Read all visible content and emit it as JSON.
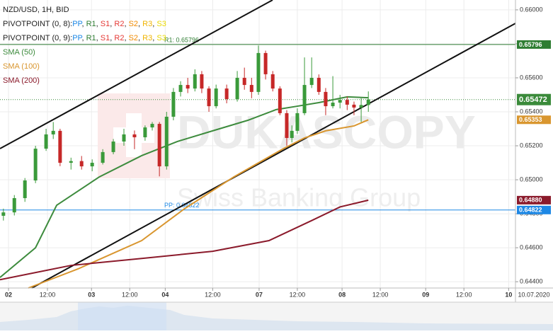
{
  "chart_data": {
    "type": "candlestick",
    "title": "NZD/USD, 1H, BID",
    "up_color": "#3a9a3a",
    "down_color": "#c62828",
    "x": [
      -1.5,
      1.7,
      4.8,
      7.9,
      11.0,
      13.1,
      15.1,
      18.3,
      21.4,
      24.5,
      27.6,
      30.7,
      33.8,
      36.9,
      40.0,
      42.1,
      44.2,
      46.3,
      48.3,
      50.4,
      52.5,
      54.6,
      56.6,
      58.7,
      60.8,
      63.9,
      67.0,
      69.1,
      71.2,
      73.2,
      75.3,
      77.4,
      79.5,
      81.5,
      83.0,
      84.6,
      86.7,
      88.8,
      90.9,
      92.9,
      95.0,
      97.1,
      99.2,
      101.2,
      103.3,
      105.4
    ],
    "open": [
      0.64788,
      0.64808,
      0.64892,
      0.64996,
      0.65183,
      0.65267,
      0.65288,
      0.651,
      0.6511,
      0.65079,
      0.651,
      0.65163,
      0.65225,
      0.65267,
      0.6525,
      0.65308,
      0.65329,
      0.65079,
      0.65371,
      0.65517,
      0.65558,
      0.65537,
      0.65621,
      0.65537,
      0.65433,
      0.65537,
      0.65475,
      0.656,
      0.65558,
      0.65517,
      0.65746,
      0.65621,
      0.65537,
      0.65392,
      0.65246,
      0.65288,
      0.65392,
      0.65558,
      0.656,
      0.65517,
      0.65433,
      0.65454,
      0.6547,
      0.65442,
      0.65425,
      0.6544
    ],
    "high": [
      0.6483,
      0.6491,
      0.6501,
      0.652,
      0.653,
      0.6534,
      0.653,
      0.6513,
      0.6514,
      0.6512,
      0.6518,
      0.6524,
      0.653,
      0.6529,
      0.6532,
      0.6534,
      0.6534,
      0.654,
      0.6554,
      0.6558,
      0.656,
      0.6565,
      0.6564,
      0.6555,
      0.6556,
      0.6556,
      0.6564,
      0.6566,
      0.656,
      0.6579,
      0.6576,
      0.6564,
      0.6555,
      0.6541,
      0.6532,
      0.6542,
      0.6572,
      0.6572,
      0.6562,
      0.6554,
      0.6561,
      0.655,
      0.6549,
      0.6546,
      0.6548,
      0.6552
    ],
    "low": [
      0.6476,
      0.6479,
      0.6487,
      0.6498,
      0.6517,
      0.6524,
      0.6508,
      0.6506,
      0.6506,
      0.6505,
      0.6509,
      0.6515,
      0.652,
      0.6518,
      0.6523,
      0.6529,
      0.6502,
      0.6506,
      0.6535,
      0.6549,
      0.6551,
      0.6552,
      0.6551,
      0.654,
      0.6542,
      0.6545,
      0.6546,
      0.6553,
      0.6548,
      0.655,
      0.6559,
      0.6552,
      0.6538,
      0.652,
      0.6522,
      0.6527,
      0.6538,
      0.6554,
      0.655,
      0.6538,
      0.6542,
      0.6542,
      0.6541,
      0.6538,
      0.6534,
      0.654
    ],
    "close": [
      0.64808,
      0.64892,
      0.64996,
      0.65183,
      0.65267,
      0.65288,
      0.651,
      0.6511,
      0.65079,
      0.651,
      0.65163,
      0.65225,
      0.65267,
      0.6525,
      0.65308,
      0.65329,
      0.65079,
      0.65371,
      0.65517,
      0.65558,
      0.65537,
      0.65621,
      0.65537,
      0.65433,
      0.65537,
      0.65475,
      0.656,
      0.65558,
      0.65517,
      0.65746,
      0.65621,
      0.65537,
      0.65392,
      0.65246,
      0.65288,
      0.65392,
      0.65558,
      0.656,
      0.65517,
      0.65433,
      0.65454,
      0.6547,
      0.65442,
      0.65425,
      0.6544,
      0.65472
    ],
    "last_price": {
      "value": 0.65472,
      "label": "0.65472",
      "color": "#3a8a3a"
    },
    "series": [
      {
        "name": "SMA (50)",
        "color": "#3d8b3d",
        "x": [
          -2.5,
          7.9,
          14.1,
          26.6,
          39.0,
          49.4,
          59.8,
          70.1,
          78.4,
          84.6,
          90.9,
          99.2,
          105.4
        ],
        "values": [
          0.64425,
          0.646,
          0.6485,
          0.65017,
          0.65142,
          0.65225,
          0.65288,
          0.6535,
          0.65413,
          0.65433,
          0.65454,
          0.65488,
          0.65483
        ]
      },
      {
        "name": "SMA (100)",
        "color": "#d9962f",
        "x": [
          5.8,
          20.3,
          39.0,
          51.5,
          66.0,
          80.5,
          86.7,
          92.9,
          101.2,
          105.4
        ],
        "values": [
          0.64363,
          0.64475,
          0.64642,
          0.64829,
          0.65017,
          0.65183,
          0.65246,
          0.65288,
          0.65317,
          0.65353
        ],
        "end_label": "0.65353"
      },
      {
        "name": "SMA (200)",
        "color": "#8b1a2b",
        "x": [
          -2.5,
          18.3,
          39.0,
          59.8,
          76.3,
          88.8,
          97.1,
          105.4
        ],
        "values": [
          0.64412,
          0.64496,
          0.64537,
          0.64579,
          0.64642,
          0.6476,
          0.6484,
          0.6488
        ],
        "end_label": "0.64880"
      }
    ],
    "pivot_legends": [
      {
        "label": "PIVOTPOINT (0, 8):",
        "items": [
          "PP",
          "R1",
          "S1",
          "R2",
          "S2",
          "R3",
          "S3"
        ]
      },
      {
        "label": "PIVOTPOINT (0, 9):",
        "items": [
          "PP",
          "R1",
          "S1",
          "R2",
          "S2",
          "R3",
          "S3"
        ]
      }
    ],
    "pivot_colors": [
      "#1e88e5",
      "#2e7d32",
      "#e53935",
      "#e53935",
      "#f08a00",
      "#f0b400",
      "#e8d800"
    ],
    "separator": ", ",
    "levels": [
      {
        "value": 0.65796,
        "line_label": "R1: 0.65796",
        "value_label": "0.65796",
        "color": "#2e7d32"
      },
      {
        "value": 0.64822,
        "line_label": "PP: 0.64822",
        "value_label": "0.64822",
        "color": "#1e88e5"
      }
    ],
    "xlim": [
      -2.5,
      148.5
    ],
    "xticks": [
      {
        "value": 0,
        "label": "02"
      },
      {
        "value": 11.4,
        "label": "12:00"
      },
      {
        "value": 24.3,
        "label": "03"
      },
      {
        "value": 35.5,
        "label": "12:00"
      },
      {
        "value": 45.9,
        "label": "04"
      },
      {
        "value": 59.8,
        "label": "12:00"
      },
      {
        "value": 73.4,
        "label": "07"
      },
      {
        "value": 84.6,
        "label": "12:00"
      },
      {
        "value": 97.7,
        "label": "08"
      },
      {
        "value": 108.9,
        "label": "12:00"
      },
      {
        "value": 122.2,
        "label": "09"
      },
      {
        "value": 133.4,
        "label": "12:00"
      },
      {
        "value": 146.5,
        "label": "10"
      }
    ],
    "ylim": [
      0.64363,
      0.66058
    ],
    "yticks": [
      {
        "value": 0.644,
        "label": "0.64400"
      },
      {
        "value": 0.646,
        "label": "0.64600"
      },
      {
        "value": 0.648,
        "label": "0.64800"
      },
      {
        "value": 0.65,
        "label": "0.65000"
      },
      {
        "value": 0.652,
        "label": "0.65200"
      },
      {
        "value": 0.654,
        "label": "0.65400"
      },
      {
        "value": 0.656,
        "label": "0.65600"
      },
      {
        "value": 0.658,
        "label": "0.65800"
      },
      {
        "value": 0.66,
        "label": "0.66000"
      }
    ],
    "grid": true,
    "date_label": "10.07.2020",
    "watermark": {
      "brand": "DUKASCOPY",
      "tagline": "Swiss Banking Group"
    }
  }
}
